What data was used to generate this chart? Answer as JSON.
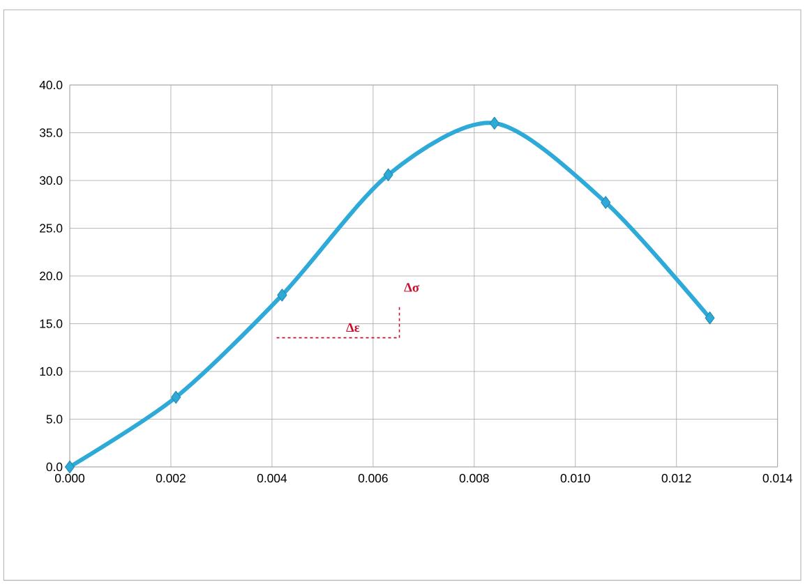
{
  "chart_data": {
    "type": "line",
    "x": [
      0,
      0.0021,
      0.0042,
      0.0063,
      0.0084,
      0.0106,
      0.01266
    ],
    "values": [
      0,
      7.3,
      18.0,
      30.6,
      36.0,
      27.7,
      15.6
    ],
    "color": "#2eaad8",
    "marker": "diamond",
    "line_style": "solid",
    "grid": true,
    "xlim": [
      0,
      0.014
    ],
    "xticks": [
      {
        "value": 0,
        "label": "0.000"
      },
      {
        "value": 0.002,
        "label": "0.002"
      },
      {
        "value": 0.004,
        "label": "0.004"
      },
      {
        "value": 0.006,
        "label": "0.006"
      },
      {
        "value": 0.008,
        "label": "0.008"
      },
      {
        "value": 0.01,
        "label": "0.010"
      },
      {
        "value": 0.012,
        "label": "0.012"
      },
      {
        "value": 0.014,
        "label": "0.014"
      }
    ],
    "ylim": [
      0,
      40
    ],
    "yticks": [
      {
        "value": 0,
        "label": "0.0"
      },
      {
        "value": 5,
        "label": "5.0"
      },
      {
        "value": 10,
        "label": "10.0"
      },
      {
        "value": 15,
        "label": "15.0"
      },
      {
        "value": 20,
        "label": "20.0"
      },
      {
        "value": 25,
        "label": "25.0"
      },
      {
        "value": 30,
        "label": "30.0"
      },
      {
        "value": 35,
        "label": "35.0"
      },
      {
        "value": 40,
        "label": "40.0"
      }
    ],
    "annotations": [
      "Δε",
      "Δσ"
    ]
  }
}
